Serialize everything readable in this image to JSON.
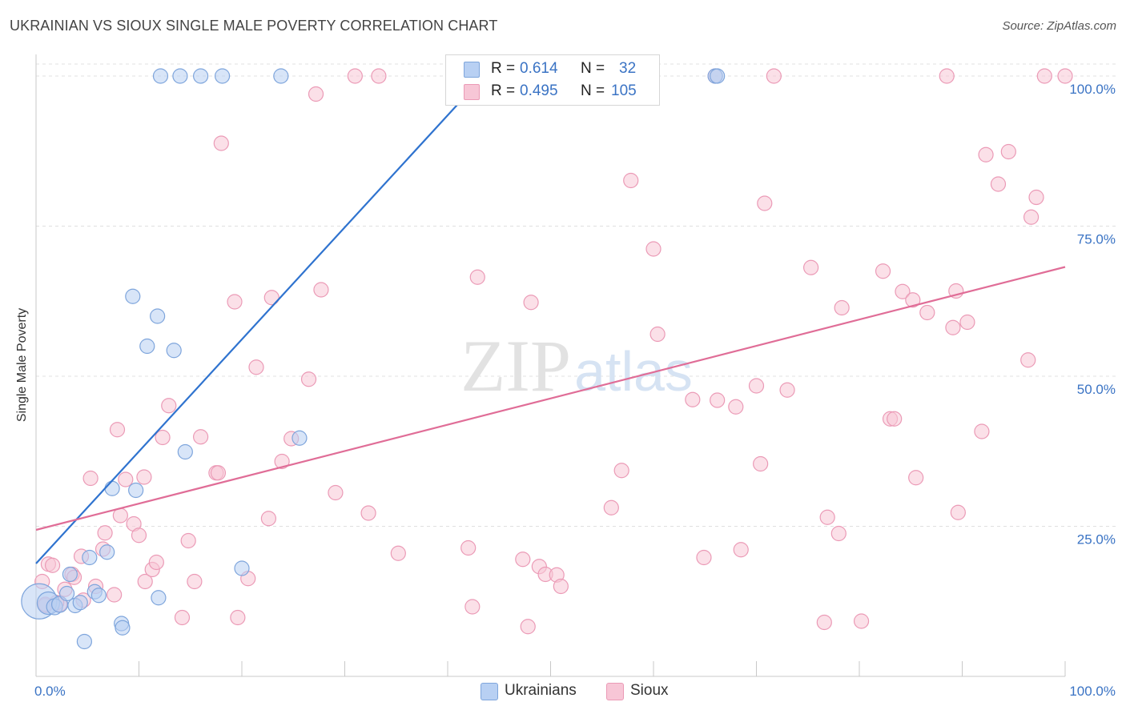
{
  "title": "UKRAINIAN VS SIOUX SINGLE MALE POVERTY CORRELATION CHART",
  "source": "Source: ZipAtlas.com",
  "watermark": "ZIPatlas",
  "colors": {
    "ukrainians_fill": "#b8d0f3",
    "ukrainians_stroke": "#7ea5dc",
    "ukrainians_line": "#2f73cf",
    "sioux_fill": "#f7c6d6",
    "sioux_stroke": "#eb9ab6",
    "sioux_line": "#e06d97",
    "value_blue": "#3a73c4",
    "grid": "#e0e0e0"
  },
  "legend_box": {
    "rows": [
      {
        "r_label": "R =",
        "r_value": "0.614",
        "n_label": "N =",
        "n_value": "32"
      },
      {
        "r_label": "R =",
        "r_value": "0.495",
        "n_label": "N =",
        "n_value": "105"
      }
    ]
  },
  "bottom_legend": {
    "ukrainians": "Ukrainians",
    "sioux": "Sioux"
  },
  "chart_data": {
    "type": "scatter",
    "title": "UKRAINIAN VS SIOUX SINGLE MALE POVERTY CORRELATION CHART",
    "xlabel": "",
    "ylabel": "Single Male Poverty",
    "xlim": [
      0,
      100
    ],
    "ylim": [
      0,
      102
    ],
    "x_tick_labels": [
      "0.0%",
      "100.0%"
    ],
    "y_tick_labels": [
      "25.0%",
      "50.0%",
      "75.0%",
      "100.0%"
    ],
    "y_tick_values": [
      25,
      50,
      75,
      100
    ],
    "grid": true,
    "legend_placement": "bottom-center",
    "series": [
      {
        "name": "Ukrainians",
        "r": 0.614,
        "n": 32,
        "trend": {
          "x": [
            0,
            43.5
          ],
          "y": [
            18.8,
            100
          ]
        },
        "points": [
          [
            0.3,
            12.5,
            22
          ],
          [
            1.2,
            12.2,
            14
          ],
          [
            1.8,
            11.6,
            10
          ],
          [
            2.3,
            12.0,
            10
          ],
          [
            3.0,
            13.8,
            9
          ],
          [
            3.3,
            17.0,
            9
          ],
          [
            3.8,
            11.8,
            9
          ],
          [
            4.3,
            12.3,
            9
          ],
          [
            4.7,
            5.8,
            9
          ],
          [
            5.2,
            19.8,
            9
          ],
          [
            5.7,
            14.1,
            9
          ],
          [
            6.1,
            13.5,
            9
          ],
          [
            6.9,
            20.7,
            9
          ],
          [
            7.4,
            31.3,
            9
          ],
          [
            8.3,
            8.8,
            9
          ],
          [
            8.4,
            8.1,
            9
          ],
          [
            9.4,
            63.3,
            9
          ],
          [
            9.7,
            31.0,
            9
          ],
          [
            10.8,
            55.0,
            9
          ],
          [
            11.8,
            60.0,
            9
          ],
          [
            11.9,
            13.1,
            9
          ],
          [
            12.1,
            100,
            9
          ],
          [
            13.4,
            54.3,
            9
          ],
          [
            14.0,
            100,
            9
          ],
          [
            14.5,
            37.4,
            9
          ],
          [
            16.0,
            100,
            9
          ],
          [
            18.1,
            100,
            9
          ],
          [
            20.0,
            18.0,
            9
          ],
          [
            23.8,
            100,
            9
          ],
          [
            25.6,
            39.7,
            9
          ],
          [
            66.0,
            100,
            9
          ],
          [
            66.2,
            100,
            9
          ]
        ]
      },
      {
        "name": "Sioux",
        "r": 0.495,
        "n": 105,
        "trend": {
          "x": [
            0,
            100
          ],
          "y": [
            24.4,
            68.2
          ]
        },
        "points": [
          [
            0.6,
            15.8,
            9
          ],
          [
            0.9,
            11.8,
            9
          ],
          [
            1.2,
            18.7,
            9
          ],
          [
            1.6,
            18.5,
            9
          ],
          [
            2.3,
            12.0,
            9
          ],
          [
            2.8,
            14.5,
            9
          ],
          [
            3.5,
            17.0,
            9
          ],
          [
            3.7,
            16.5,
            9
          ],
          [
            4.4,
            20.0,
            9
          ],
          [
            4.6,
            12.7,
            9
          ],
          [
            5.3,
            33.0,
            9
          ],
          [
            5.8,
            15.0,
            9
          ],
          [
            6.5,
            21.2,
            9
          ],
          [
            6.7,
            23.9,
            9
          ],
          [
            7.6,
            13.6,
            9
          ],
          [
            7.9,
            41.1,
            9
          ],
          [
            8.2,
            26.8,
            9
          ],
          [
            8.7,
            32.8,
            9
          ],
          [
            9.5,
            25.4,
            9
          ],
          [
            10.0,
            23.5,
            9
          ],
          [
            10.5,
            33.2,
            9
          ],
          [
            10.6,
            15.8,
            9
          ],
          [
            11.3,
            17.8,
            9
          ],
          [
            11.7,
            19.0,
            9
          ],
          [
            12.3,
            39.8,
            9
          ],
          [
            12.9,
            45.1,
            9
          ],
          [
            14.2,
            9.8,
            9
          ],
          [
            14.8,
            22.6,
            9
          ],
          [
            15.4,
            15.8,
            9
          ],
          [
            16.0,
            39.9,
            9
          ],
          [
            17.5,
            33.9,
            9
          ],
          [
            17.7,
            33.9,
            9
          ],
          [
            18.0,
            88.8,
            9
          ],
          [
            19.3,
            62.4,
            9
          ],
          [
            19.6,
            9.8,
            9
          ],
          [
            20.6,
            16.3,
            9
          ],
          [
            21.4,
            51.5,
            9
          ],
          [
            22.6,
            26.3,
            9
          ],
          [
            22.9,
            63.1,
            9
          ],
          [
            23.9,
            35.8,
            9
          ],
          [
            24.8,
            39.6,
            9
          ],
          [
            26.5,
            49.5,
            9
          ],
          [
            27.2,
            97.0,
            9
          ],
          [
            27.7,
            64.4,
            9
          ],
          [
            29.1,
            30.6,
            9
          ],
          [
            31.0,
            100,
            9
          ],
          [
            32.3,
            27.2,
            9
          ],
          [
            33.3,
            100,
            9
          ],
          [
            35.2,
            20.5,
            9
          ],
          [
            42.0,
            21.4,
            9
          ],
          [
            42.4,
            11.6,
            9
          ],
          [
            42.9,
            66.5,
            9
          ],
          [
            46.3,
            100,
            9
          ],
          [
            47.3,
            19.5,
            9
          ],
          [
            47.8,
            8.3,
            9
          ],
          [
            48.1,
            62.3,
            9
          ],
          [
            48.9,
            18.3,
            9
          ],
          [
            49.5,
            17.0,
            9
          ],
          [
            50.6,
            16.9,
            9
          ],
          [
            51.0,
            15.0,
            9
          ],
          [
            55.9,
            28.1,
            9
          ],
          [
            56.9,
            34.3,
            9
          ],
          [
            57.8,
            82.6,
            9
          ],
          [
            60.0,
            71.2,
            9
          ],
          [
            60.4,
            57.0,
            9
          ],
          [
            63.8,
            46.1,
            9
          ],
          [
            64.9,
            19.8,
            9
          ],
          [
            66.0,
            100,
            9
          ],
          [
            66.2,
            46.0,
            9
          ],
          [
            68.0,
            44.9,
            9
          ],
          [
            68.5,
            21.1,
            9
          ],
          [
            70.0,
            48.4,
            9
          ],
          [
            70.4,
            35.4,
            9
          ],
          [
            70.8,
            78.8,
            9
          ],
          [
            71.7,
            100,
            9
          ],
          [
            73.0,
            47.7,
            9
          ],
          [
            75.3,
            68.1,
            9
          ],
          [
            76.6,
            9.0,
            9
          ],
          [
            76.9,
            26.5,
            9
          ],
          [
            78.0,
            23.8,
            9
          ],
          [
            78.3,
            61.4,
            9
          ],
          [
            80.2,
            9.2,
            9
          ],
          [
            82.3,
            67.5,
            9
          ],
          [
            83.0,
            42.9,
            9
          ],
          [
            83.4,
            42.9,
            9
          ],
          [
            84.2,
            64.1,
            9
          ],
          [
            85.2,
            62.7,
            9
          ],
          [
            85.5,
            33.1,
            9
          ],
          [
            86.6,
            60.6,
            9
          ],
          [
            88.5,
            100,
            9
          ],
          [
            89.1,
            58.1,
            9
          ],
          [
            89.4,
            64.2,
            9
          ],
          [
            89.6,
            27.3,
            9
          ],
          [
            90.5,
            59.0,
            9
          ],
          [
            91.9,
            40.8,
            9
          ],
          [
            92.3,
            86.9,
            9
          ],
          [
            93.5,
            82.0,
            9
          ],
          [
            94.5,
            87.4,
            9
          ],
          [
            96.4,
            52.7,
            9
          ],
          [
            96.7,
            76.5,
            9
          ],
          [
            97.2,
            79.8,
            9
          ],
          [
            98.0,
            100,
            9
          ],
          [
            100.0,
            100,
            9
          ],
          [
            0.9,
            12.0,
            9
          ],
          [
            2.0,
            12.3,
            9
          ]
        ]
      }
    ]
  }
}
